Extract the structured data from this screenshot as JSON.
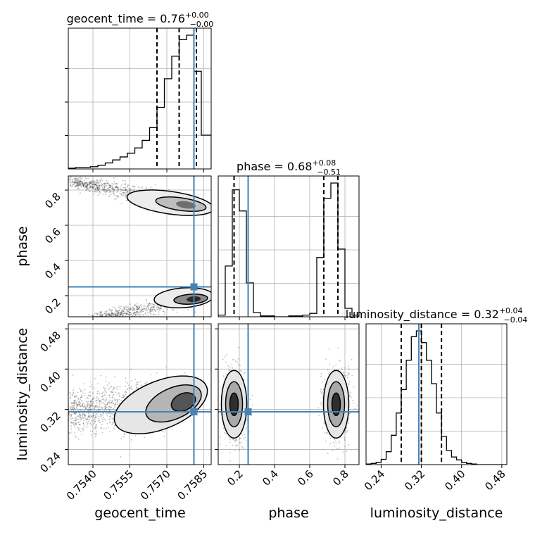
{
  "chart_data": {
    "type": "corner",
    "parameters": [
      "geocent_time",
      "phase",
      "luminosity_distance"
    ],
    "truth": {
      "geocent_time": 0.7581,
      "phase": 0.25,
      "luminosity_distance": 0.315
    },
    "titles": [
      {
        "name": "geocent_time",
        "median": "0.76",
        "upper": "+0.00",
        "lower": "−0.00"
      },
      {
        "name": "phase",
        "median": "0.68",
        "upper": "+0.08",
        "lower": "−0.51"
      },
      {
        "name": "luminosity_distance",
        "median": "0.32",
        "upper": "+0.04",
        "lower": "−0.04"
      }
    ],
    "axes": {
      "geocent_time": {
        "range": [
          0.753,
          0.7588
        ],
        "ticks": [
          0.754,
          0.7555,
          0.757,
          0.7585
        ],
        "tick_labels": [
          "0.7540",
          "0.7555",
          "0.7570",
          "0.7585"
        ]
      },
      "phase": {
        "range": [
          0.08,
          0.88
        ],
        "ticks": [
          0.2,
          0.4,
          0.6,
          0.8
        ],
        "tick_labels": [
          "0.2",
          "0.4",
          "0.6",
          "0.8"
        ]
      },
      "luminosity_distance": {
        "range": [
          0.21,
          0.49
        ],
        "ticks": [
          0.24,
          0.32,
          0.4,
          0.48
        ],
        "tick_labels": [
          "0.24",
          "0.32",
          "0.40",
          "0.48"
        ]
      }
    },
    "hist_geocent_time": {
      "edges": [
        0.753,
        0.7533,
        0.7536,
        0.7539,
        0.7542,
        0.7545,
        0.7548,
        0.7551,
        0.7554,
        0.7557,
        0.756,
        0.7563,
        0.7566,
        0.7569,
        0.7572,
        0.7575,
        0.7578,
        0.7581,
        0.7584,
        0.7588
      ],
      "counts": [
        1,
        2,
        2,
        3,
        5,
        8,
        12,
        16,
        21,
        28,
        38,
        55,
        82,
        120,
        150,
        172,
        178,
        130,
        45
      ],
      "quantiles": [
        0.7566,
        0.7575,
        0.7582
      ]
    },
    "hist_phase": {
      "edges": [
        0.08,
        0.12,
        0.16,
        0.2,
        0.24,
        0.28,
        0.32,
        0.36,
        0.4,
        0.44,
        0.48,
        0.52,
        0.56,
        0.6,
        0.64,
        0.68,
        0.72,
        0.76,
        0.8,
        0.84,
        0.88
      ],
      "counts": [
        2,
        60,
        150,
        125,
        40,
        5,
        1,
        1,
        0,
        0,
        1,
        1,
        2,
        4,
        70,
        140,
        158,
        80,
        10,
        2
      ],
      "quantiles": [
        0.17,
        0.68,
        0.76
      ]
    },
    "hist_luminosity_distance": {
      "edges": [
        0.21,
        0.22,
        0.23,
        0.24,
        0.25,
        0.26,
        0.27,
        0.28,
        0.29,
        0.3,
        0.31,
        0.32,
        0.33,
        0.34,
        0.35,
        0.36,
        0.37,
        0.38,
        0.39,
        0.4,
        0.41,
        0.42,
        0.43,
        0.44,
        0.45,
        0.46,
        0.47,
        0.48,
        0.49
      ],
      "counts": [
        1,
        2,
        4,
        9,
        22,
        50,
        88,
        128,
        178,
        218,
        228,
        208,
        178,
        138,
        88,
        48,
        24,
        13,
        8,
        4,
        2,
        1,
        0,
        0,
        0,
        0,
        0,
        0
      ],
      "quantiles": [
        0.28,
        0.32,
        0.36
      ]
    },
    "density_geocent_phase": {
      "upper_mode": {
        "x": 0.758,
        "y": 0.72
      },
      "lower_mode": {
        "x": 0.7582,
        "y": 0.18
      }
    },
    "density_geocent_distance": {
      "mode": {
        "x": 0.7579,
        "y": 0.34
      }
    },
    "density_phase_distance": {
      "modes": [
        {
          "x": 0.17,
          "y": 0.33
        },
        {
          "x": 0.75,
          "y": 0.33
        }
      ]
    }
  }
}
